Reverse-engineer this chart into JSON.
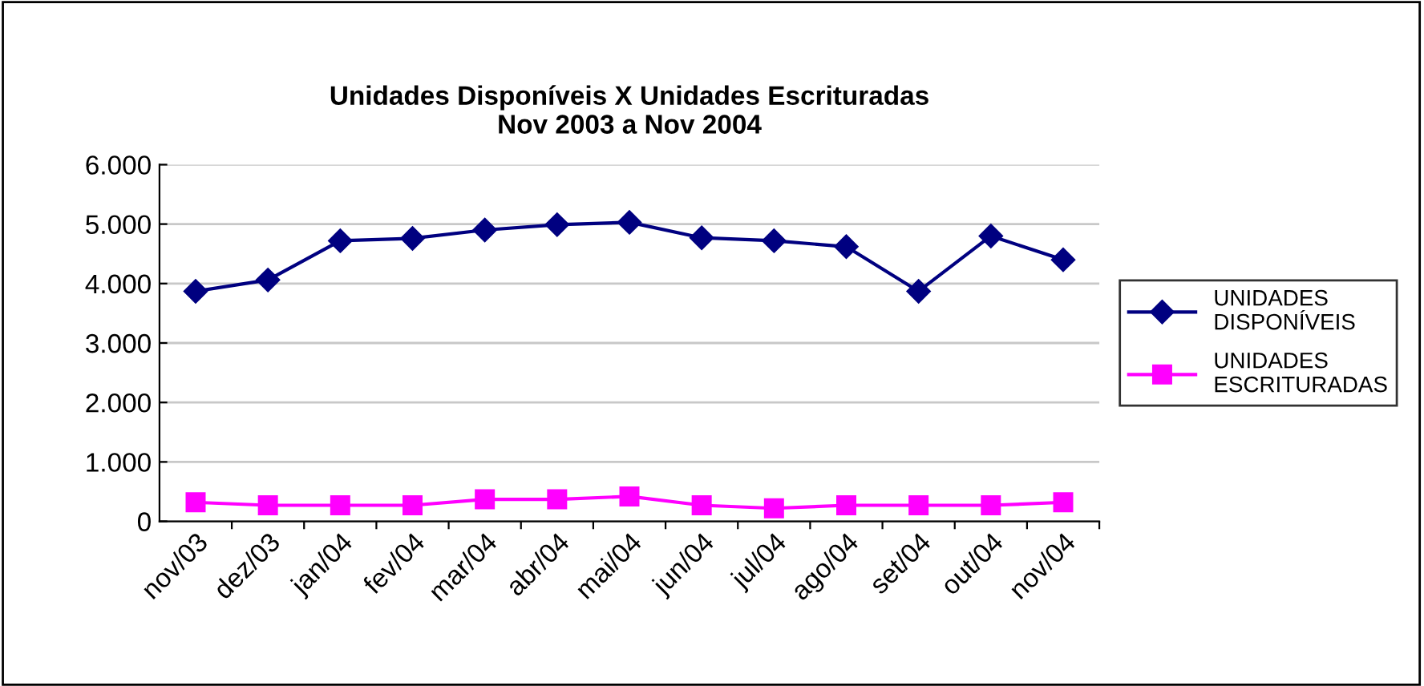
{
  "chart_data": {
    "type": "line",
    "title": "Unidades Disponíveis X Unidades Escrituradas\nNov 2003 a Nov 2004",
    "categories": [
      "nov/03",
      "dez/03",
      "jan/04",
      "fev/04",
      "mar/04",
      "abr/04",
      "mai/04",
      "jun/04",
      "jul/04",
      "ago/04",
      "set/04",
      "out/04",
      "nov/04"
    ],
    "series": [
      {
        "name": "UNIDADES DISPONÍVEIS",
        "color": "#000080",
        "marker": "diamond",
        "values": [
          3870,
          4060,
          4720,
          4760,
          4900,
          4990,
          5030,
          4770,
          4720,
          4620,
          3870,
          4800,
          4400
        ]
      },
      {
        "name": "UNIDADES ESCRITURADAS",
        "color": "#ff00ff",
        "marker": "square",
        "values": [
          320,
          270,
          270,
          270,
          370,
          370,
          420,
          270,
          220,
          270,
          270,
          270,
          320
        ]
      }
    ],
    "ylim": [
      0,
      6000
    ],
    "yticks": [
      {
        "value": 0,
        "label": "0"
      },
      {
        "value": 1000,
        "label": "1.000"
      },
      {
        "value": 2000,
        "label": "2.000"
      },
      {
        "value": 3000,
        "label": "3.000"
      },
      {
        "value": 4000,
        "label": "4.000"
      },
      {
        "value": 5000,
        "label": "5.000"
      },
      {
        "value": 6000,
        "label": "6.000"
      }
    ],
    "grid": "y",
    "legend": "right",
    "line_style": "solid"
  }
}
